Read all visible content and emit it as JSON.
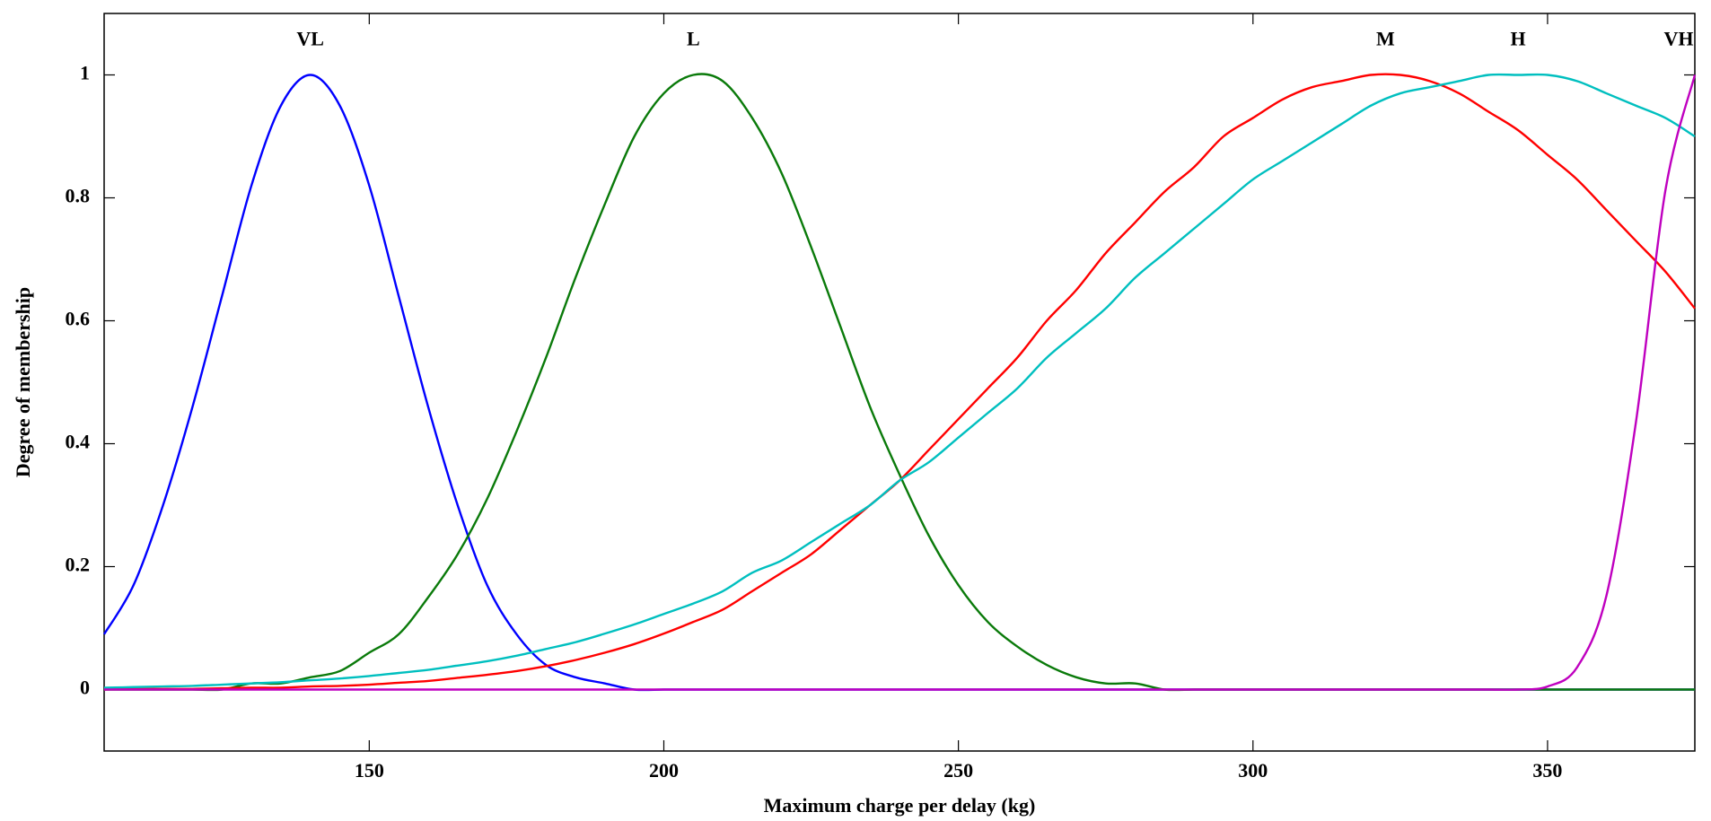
{
  "chart_data": {
    "type": "line",
    "x_label": "Maximum charge per delay (kg)",
    "y_label": "Degree of membership",
    "x": [
      105,
      110,
      115,
      120,
      125,
      130,
      135,
      140,
      145,
      150,
      155,
      160,
      165,
      170,
      175,
      180,
      185,
      190,
      195,
      200,
      205,
      210,
      215,
      220,
      225,
      230,
      235,
      240,
      245,
      250,
      255,
      260,
      265,
      270,
      275,
      280,
      285,
      290,
      295,
      300,
      305,
      310,
      315,
      320,
      325,
      330,
      335,
      340,
      345,
      350,
      355,
      360,
      365,
      370,
      375
    ],
    "series": [
      {
        "name": "VL",
        "color": "#0000ff",
        "values": [
          0.09,
          0.17,
          0.3,
          0.46,
          0.64,
          0.82,
          0.95,
          1,
          0.95,
          0.82,
          0.64,
          0.46,
          0.3,
          0.17,
          0.09,
          0.04,
          0.02,
          0.01,
          0,
          0,
          0,
          0,
          0,
          0,
          0,
          0,
          0,
          0,
          0,
          0,
          0,
          0,
          0,
          0,
          0,
          0,
          0,
          0,
          0,
          0,
          0,
          0,
          0,
          0,
          0,
          0,
          0,
          0,
          0,
          0,
          0,
          0,
          0,
          0,
          0
        ]
      },
      {
        "name": "L",
        "color": "#0a7a0a",
        "values": [
          0,
          0,
          0,
          0,
          0,
          0.01,
          0.01,
          0.02,
          0.03,
          0.06,
          0.09,
          0.15,
          0.22,
          0.31,
          0.42,
          0.54,
          0.67,
          0.79,
          0.9,
          0.97,
          1,
          0.99,
          0.93,
          0.84,
          0.72,
          0.59,
          0.46,
          0.35,
          0.25,
          0.17,
          0.11,
          0.07,
          0.04,
          0.02,
          0.01,
          0.01,
          0,
          0,
          0,
          0,
          0,
          0,
          0,
          0,
          0,
          0,
          0,
          0,
          0,
          0,
          0,
          0,
          0,
          0,
          0
        ]
      },
      {
        "name": "M",
        "color": "#ff0000",
        "values": [
          0,
          0.001,
          0.001,
          0.001,
          0.002,
          0.003,
          0.003,
          0.005,
          0.006,
          0.008,
          0.011,
          0.014,
          0.019,
          0.024,
          0.03,
          0.038,
          0.048,
          0.06,
          0.074,
          0.091,
          0.11,
          0.13,
          0.16,
          0.19,
          0.22,
          0.26,
          0.3,
          0.34,
          0.39,
          0.44,
          0.49,
          0.54,
          0.6,
          0.65,
          0.71,
          0.76,
          0.81,
          0.85,
          0.9,
          0.93,
          0.96,
          0.98,
          0.99,
          1,
          1,
          0.99,
          0.97,
          0.94,
          0.91,
          0.87,
          0.83,
          0.78,
          0.73,
          0.68,
          0.62
        ]
      },
      {
        "name": "H",
        "color": "#00bfbf",
        "values": [
          0.003,
          0.004,
          0.005,
          0.006,
          0.008,
          0.01,
          0.012,
          0.015,
          0.018,
          0.022,
          0.027,
          0.032,
          0.039,
          0.046,
          0.055,
          0.066,
          0.077,
          0.091,
          0.106,
          0.123,
          0.14,
          0.16,
          0.19,
          0.21,
          0.24,
          0.27,
          0.3,
          0.34,
          0.37,
          0.41,
          0.45,
          0.49,
          0.54,
          0.58,
          0.62,
          0.67,
          0.71,
          0.75,
          0.79,
          0.83,
          0.86,
          0.89,
          0.92,
          0.95,
          0.97,
          0.98,
          0.99,
          1,
          1,
          1,
          0.99,
          0.97,
          0.95,
          0.93,
          0.9
        ]
      },
      {
        "name": "VH",
        "color": "#bf00bf",
        "values": [
          0,
          0,
          0,
          0,
          0,
          0,
          0,
          0,
          0,
          0,
          0,
          0,
          0,
          0,
          0,
          0,
          0,
          0,
          0,
          0,
          0,
          0,
          0,
          0,
          0,
          0,
          0,
          0,
          0,
          0,
          0,
          0,
          0,
          0,
          0,
          0,
          0,
          0,
          0,
          0,
          0,
          0,
          0,
          0,
          0,
          0,
          0,
          0,
          0,
          0.005,
          0.036,
          0.153,
          0.435,
          0.812,
          1
        ]
      }
    ],
    "xlim": [
      105,
      375
    ],
    "ylim": [
      -0.1,
      1.1
    ],
    "xticks": [
      150,
      200,
      250,
      300,
      350
    ],
    "yticks": [
      0,
      0.2,
      0.4,
      0.6,
      0.8,
      1
    ],
    "grid": false
  }
}
